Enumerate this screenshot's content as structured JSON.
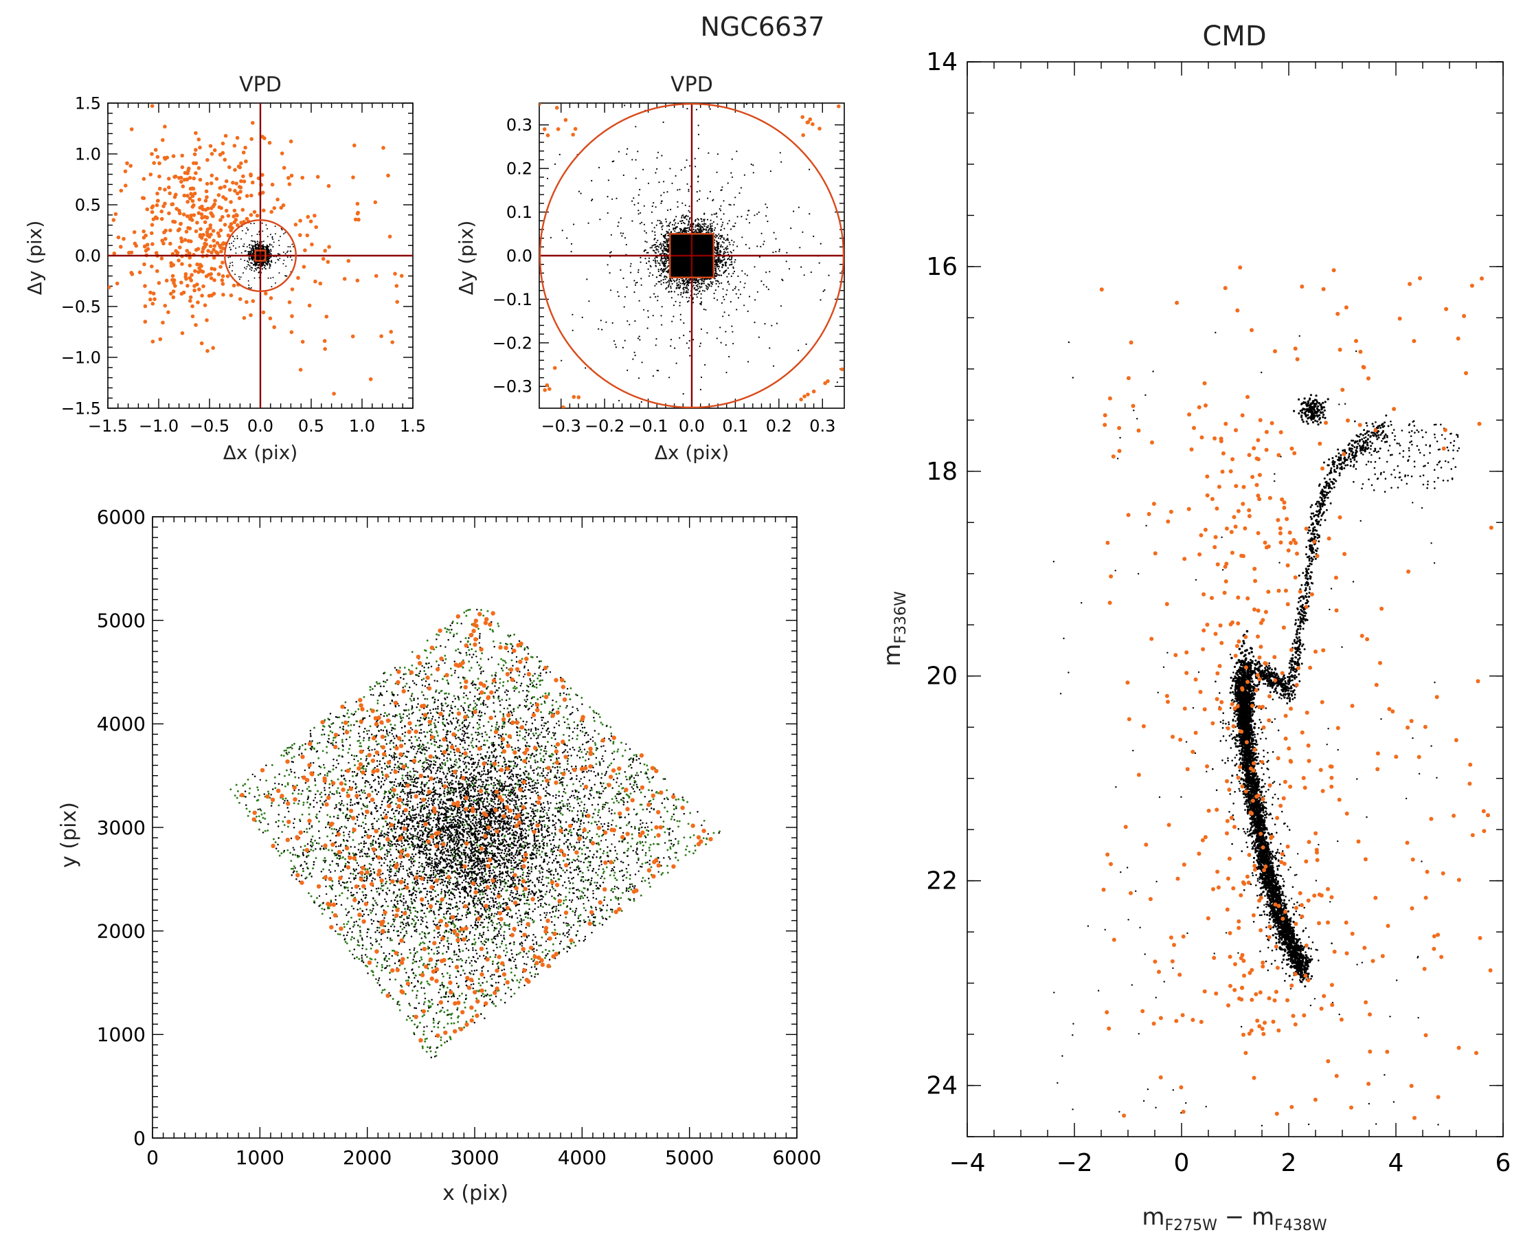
{
  "figure": {
    "title": "NGC6637"
  },
  "colors": {
    "orange": "#f26c1c",
    "black": "#000000",
    "green": "#2e7d1a",
    "darkred": "#8b0000",
    "ring": "#d94a1a"
  },
  "chart_data": [
    {
      "id": "vpd1",
      "type": "scatter",
      "title": "VPD",
      "xlabel": "Δx (pix)",
      "ylabel": "Δy (pix)",
      "xlim": [
        -1.5,
        1.5
      ],
      "ylim": [
        -1.5,
        1.5
      ],
      "xticks": [
        -1.5,
        -1.0,
        -0.5,
        0.0,
        0.5,
        1.0,
        1.5
      ],
      "yticks": [
        -1.5,
        -1.0,
        -0.5,
        0.0,
        0.5,
        1.0,
        1.5
      ],
      "xticklabels": [
        "−1.5",
        "−1.0",
        "−0.5",
        "0.0",
        "0.5",
        "1.0",
        "1.5"
      ],
      "yticklabels": [
        "−1.5",
        "−1.0",
        "−0.5",
        "0.0",
        "0.5",
        "1.0",
        "1.5"
      ],
      "selection_circle_radius": 0.35,
      "selection_box_halfwidth": 0.05,
      "series": [
        {
          "role": "field",
          "color": "#f26c1c",
          "center": [
            -0.55,
            0.25
          ],
          "spread": [
            0.42,
            0.45
          ],
          "n": 520
        },
        {
          "role": "members",
          "color": "#000000",
          "center": [
            0.0,
            0.0
          ],
          "spread": [
            0.05,
            0.05
          ],
          "n": 700
        }
      ]
    },
    {
      "id": "vpd2",
      "type": "scatter",
      "title": "VPD",
      "xlabel": "Δx (pix)",
      "ylabel": "Δy (pix)",
      "xlim": [
        -0.35,
        0.35
      ],
      "ylim": [
        -0.35,
        0.35
      ],
      "xticks": [
        -0.3,
        -0.2,
        -0.1,
        0.0,
        0.1,
        0.2,
        0.3
      ],
      "yticks": [
        -0.3,
        -0.2,
        -0.1,
        0.0,
        0.1,
        0.2,
        0.3
      ],
      "xticklabels": [
        "−0.3",
        "−0.2",
        "−0.1",
        "0.0",
        "0.1",
        "0.2",
        "0.3"
      ],
      "yticklabels": [
        "−0.3",
        "−0.2",
        "−0.1",
        "0.0",
        "0.1",
        "0.2",
        "0.3"
      ],
      "selection_circle_radius": 0.35,
      "selection_box_halfwidth": 0.05,
      "series": [
        {
          "role": "members",
          "color": "#000000",
          "center": [
            0.0,
            0.0
          ],
          "spread": [
            0.035,
            0.035
          ],
          "n": 3200
        },
        {
          "role": "halo",
          "color": "#000000",
          "center": [
            0.0,
            0.0
          ],
          "spread": [
            0.14,
            0.14
          ],
          "n": 500
        },
        {
          "role": "field",
          "color": "#f26c1c",
          "corners": true,
          "n": 30
        }
      ]
    },
    {
      "id": "xy",
      "type": "scatter",
      "title": "",
      "xlabel": "x (pix)",
      "ylabel": "y (pix)",
      "xlim": [
        0,
        6000
      ],
      "ylim": [
        0,
        6000
      ],
      "xticks": [
        0,
        1000,
        2000,
        3000,
        4000,
        5000,
        6000
      ],
      "yticks": [
        0,
        1000,
        2000,
        3000,
        4000,
        5000,
        6000
      ],
      "xticklabels": [
        "0",
        "1000",
        "2000",
        "3000",
        "4000",
        "5000",
        "6000"
      ],
      "yticklabels": [
        "0",
        "1000",
        "2000",
        "3000",
        "4000",
        "5000",
        "6000"
      ],
      "footprint": [
        [
          3050,
          5200
        ],
        [
          5300,
          2950
        ],
        [
          2600,
          750
        ],
        [
          700,
          3350
        ]
      ],
      "cluster_center": [
        2950,
        2950
      ],
      "series": [
        {
          "role": "all",
          "color": "#2e7d1a",
          "n": 9000
        },
        {
          "role": "members",
          "color": "#000000",
          "n": 8000
        },
        {
          "role": "field",
          "color": "#f26c1c",
          "n": 520
        }
      ]
    },
    {
      "id": "cmd",
      "type": "scatter",
      "title": "CMD",
      "xlabel": "m",
      "xlabel_sub1": "F275W",
      "xlabel_mid": " − m",
      "xlabel_sub2": "F438W",
      "ylabel": "m",
      "ylabel_sub": "F336W",
      "xlim": [
        -4,
        6
      ],
      "ylim": [
        24.5,
        14
      ],
      "xticks": [
        -4,
        -2,
        0,
        2,
        4,
        6
      ],
      "yticks": [
        14,
        16,
        18,
        20,
        22,
        24
      ],
      "xticklabels": [
        "−4",
        "−2",
        "0",
        "2",
        "4",
        "6"
      ],
      "yticklabels": [
        "14",
        "16",
        "18",
        "20",
        "22",
        "24"
      ],
      "sequences": {
        "main_sequence": [
          [
            1.1,
            20.0
          ],
          [
            1.2,
            20.6
          ],
          [
            1.35,
            21.2
          ],
          [
            1.55,
            21.8
          ],
          [
            1.8,
            22.3
          ],
          [
            2.1,
            22.7
          ],
          [
            2.3,
            22.9
          ]
        ],
        "subgiant": [
          [
            1.1,
            19.9
          ],
          [
            1.4,
            19.95
          ],
          [
            1.8,
            20.05
          ],
          [
            2.05,
            20.2
          ]
        ],
        "red_giant_branch": [
          [
            2.05,
            20.1
          ],
          [
            2.2,
            19.6
          ],
          [
            2.35,
            19.0
          ],
          [
            2.55,
            18.4
          ],
          [
            2.8,
            18.0
          ],
          [
            3.3,
            17.75
          ],
          [
            3.8,
            17.6
          ]
        ],
        "red_clump": [
          2.45,
          17.4
        ],
        "ms_turnoff_clump": [
          1.2,
          20.2
        ]
      },
      "series": [
        {
          "role": "members",
          "color": "#000000",
          "n": 5200
        },
        {
          "role": "field",
          "color": "#f26c1c",
          "n": 520
        }
      ]
    }
  ]
}
